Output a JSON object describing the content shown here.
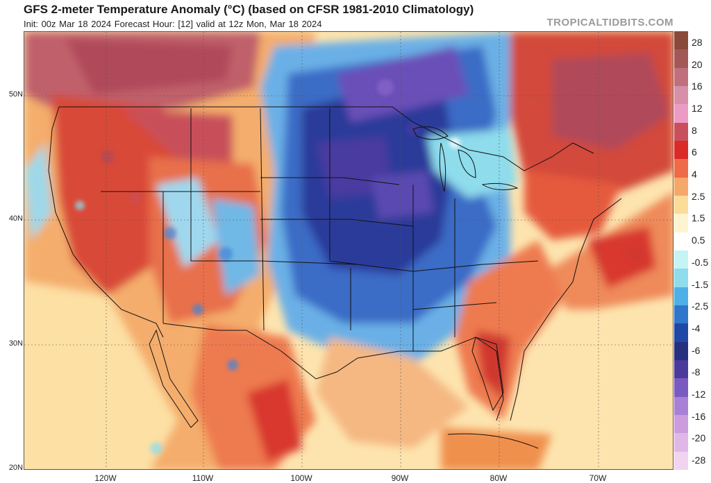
{
  "header": {
    "title": "GFS 2-meter Temperature Anomaly (°C) (based on CFSR 1981-2010 Climatology)",
    "subtitle": "Init: 00z Mar 18 2024   Forecast Hour: [12]   valid at 12z Mon, Mar 18 2024",
    "brand": "TROPICALTIDBITS.COM"
  },
  "axes": {
    "lat_labels": [
      "50N",
      "40N",
      "30N",
      "20N"
    ],
    "lon_labels": [
      "120W",
      "110W",
      "100W",
      "90W",
      "80W",
      "70W"
    ]
  },
  "colorbar": {
    "labels": [
      "28",
      "20",
      "16",
      "12",
      "8",
      "6",
      "4",
      "2.5",
      "1.5",
      "0.5",
      "-0.5",
      "-1.5",
      "-2.5",
      "-4",
      "-6",
      "-8",
      "-12",
      "-16",
      "-20",
      "-28"
    ],
    "colors": [
      "#8a4a3a",
      "#a35858",
      "#c0707c",
      "#d690a8",
      "#ec9cc4",
      "#c8505a",
      "#dc2a28",
      "#ef6a48",
      "#f5a86a",
      "#fbdc98",
      "#fff4d2",
      "#ffffff",
      "#c4f4f4",
      "#8edcec",
      "#4eb0e6",
      "#2f76cc",
      "#1f48a6",
      "#27307e",
      "#4a3a9c",
      "#7a5ac0",
      "#a880d6",
      "#cc9cde",
      "#e0b8e8",
      "#f0d4f0"
    ]
  },
  "map_colors": {
    "ocean": "#fde9b5",
    "warm_light": "#f5b06e",
    "warm": "#ee7a50",
    "hot": "#d8382e",
    "very_hot": "#b0485a",
    "cold_light": "#8edcec",
    "cold": "#3f86d6",
    "very_cold": "#2a3c9a",
    "coldest": "#6a4fb8",
    "borders": "#111111"
  }
}
